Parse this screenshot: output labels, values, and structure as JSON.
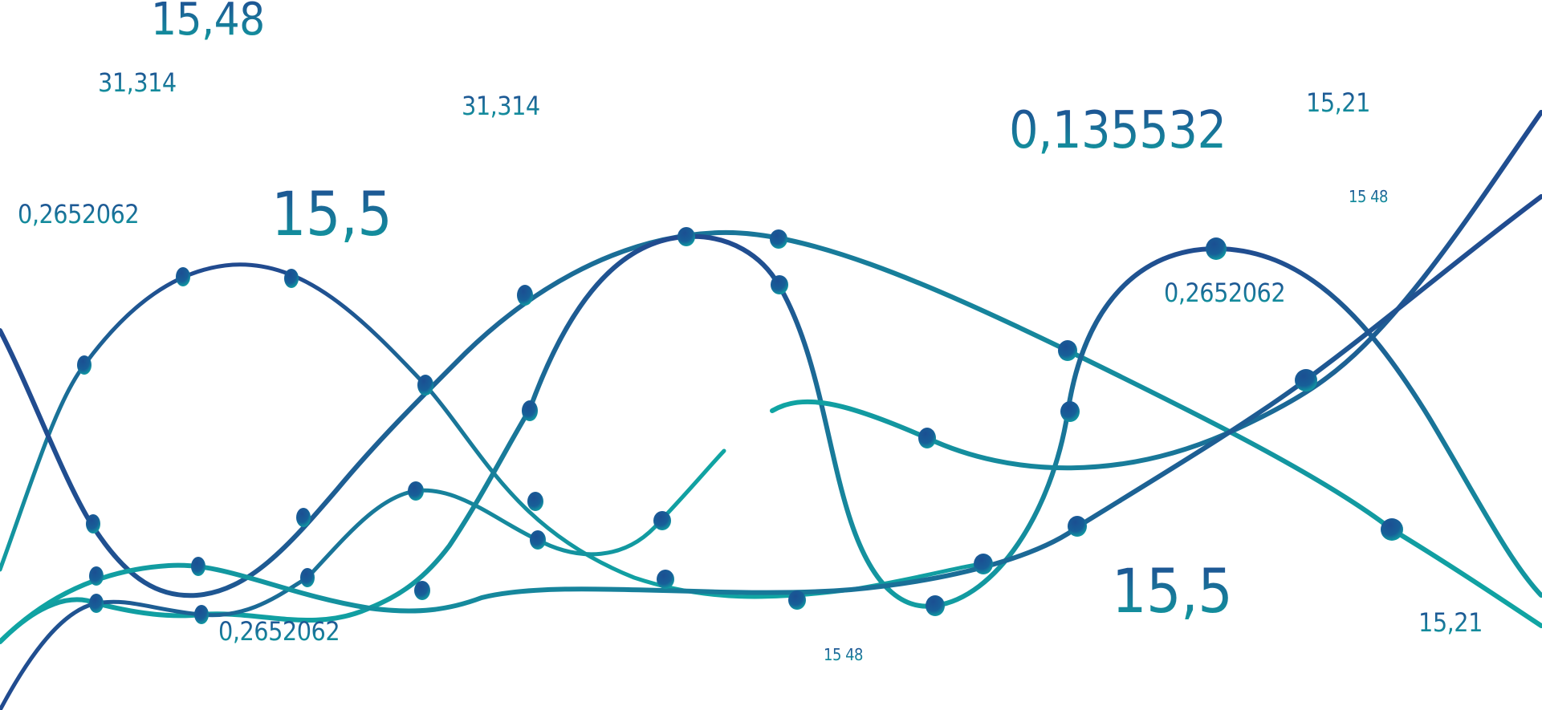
{
  "labels": {
    "l1": "15,48",
    "l2": "31,314",
    "l3": "31,314",
    "l4": "0,135532",
    "l5": "15,21",
    "l6": "15 48",
    "l7": "0,2652062",
    "l8": "15,5",
    "l9": "0,2652062",
    "l10": "15,5",
    "l11": "0,2652062",
    "l12": "15 48",
    "l13": "15,21"
  },
  "colors": {
    "navy": "#1f4e93",
    "teal": "#11a3a3",
    "background": "#ffffff"
  }
}
